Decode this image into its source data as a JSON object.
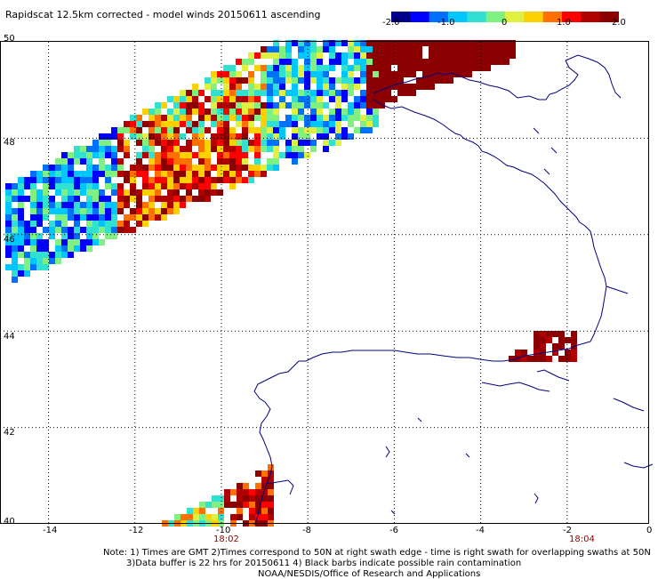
{
  "title": "Rapidscat 12.5km corrected - model winds 20150611 ascending",
  "colorbar": {
    "ticks": [
      "-2.0",
      "-1.0",
      "0",
      "1.0",
      "2.0"
    ],
    "colors": [
      "#00008b",
      "#0000ff",
      "#0070ff",
      "#00c8ff",
      "#30e0d0",
      "#80f080",
      "#e0f040",
      "#ffd000",
      "#ff7000",
      "#ff0000",
      "#b00000",
      "#8b0000"
    ]
  },
  "axes": {
    "y_labels": [
      "50",
      "48",
      "46",
      "44",
      "42",
      "40"
    ],
    "x_labels": [
      "-14",
      "-12",
      "-10",
      "-8",
      "-6",
      "-4",
      "-2",
      "0"
    ],
    "lon_range": [
      -15,
      0
    ],
    "lat_range": [
      40,
      50
    ],
    "grid": "dotted"
  },
  "time_labels": [
    "18:02",
    "18:04"
  ],
  "notes": [
    "Note: 1) Times are GMT 2)Times correspond to 50N at right swath edge - time is right swath for overlapping swaths at 50N",
    "3)Data buffer is 22 hrs for 20150611 4) Black barbs indicate possible rain contamination",
    "NOAA/NESDIS/Office of Research and Applications"
  ],
  "colors": {
    "coast": "#000080",
    "label_time": "#8b0000",
    "grid": "#000000"
  }
}
